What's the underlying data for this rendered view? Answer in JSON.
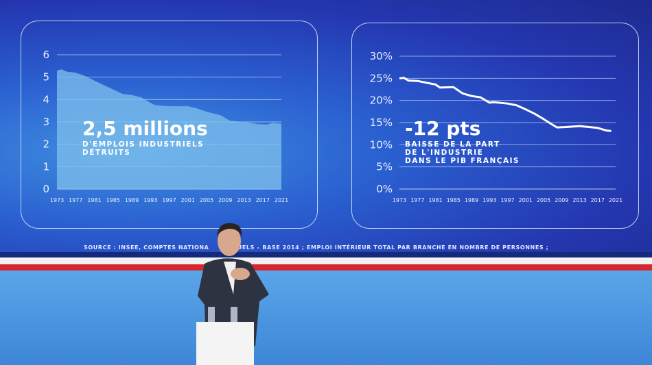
{
  "chart_data": [
    {
      "type": "area",
      "x": [
        1973,
        1974,
        1975,
        1977,
        1979,
        1981,
        1983,
        1985,
        1987,
        1989,
        1991,
        1993,
        1994,
        1997,
        2001,
        2003,
        2005,
        2007,
        2008,
        2010,
        2013,
        2016,
        2018,
        2019,
        2021
      ],
      "values": [
        5.3,
        5.35,
        5.25,
        5.2,
        5.05,
        4.85,
        4.65,
        4.45,
        4.25,
        4.2,
        4.1,
        3.85,
        3.75,
        3.7,
        3.7,
        3.6,
        3.45,
        3.35,
        3.3,
        3.05,
        3.0,
        2.9,
        2.88,
        2.95,
        2.92
      ],
      "ylim": [
        0,
        6
      ],
      "yticks": [
        "0",
        "1",
        "2",
        "3",
        "4",
        "5",
        "6"
      ],
      "xticks": [
        "1973",
        "1977",
        "1981",
        "1985",
        "1989",
        "1993",
        "1997",
        "2001",
        "2005",
        "2009",
        "2013",
        "2017",
        "2021"
      ],
      "grid": true,
      "annotation": {
        "headline": "2,5 millions",
        "sub1": "D'EMPLOIS INDUSTRIELS",
        "sub2": "DÉTRUITS"
      }
    },
    {
      "type": "line",
      "x": [
        1973,
        1974,
        1975,
        1977,
        1979,
        1981,
        1982,
        1985,
        1987,
        1989,
        1991,
        1993,
        1994,
        1997,
        1999,
        2001,
        2003,
        2005,
        2007,
        2008,
        2010,
        2013,
        2017,
        2019,
        2020
      ],
      "values": [
        25.0,
        25.1,
        24.5,
        24.4,
        24.0,
        23.6,
        22.9,
        23.0,
        21.6,
        21.0,
        20.7,
        19.5,
        19.6,
        19.3,
        18.9,
        18.0,
        17.0,
        15.8,
        14.5,
        13.9,
        14.0,
        14.2,
        13.8,
        13.2,
        13.1
      ],
      "ylim": [
        0,
        30
      ],
      "yticks": [
        "0%",
        "5%",
        "10%",
        "15%",
        "20%",
        "25%",
        "30%"
      ],
      "xticks": [
        "1973",
        "1977",
        "1981",
        "1985",
        "1989",
        "1993",
        "1997",
        "2001",
        "2005",
        "2009",
        "2013",
        "2017",
        "2021"
      ],
      "grid": true,
      "annotation": {
        "headline": "-12 pts",
        "sub1": "BAISSE DE LA PART",
        "sub2": "DE L'INDUSTRIE",
        "sub3": "DANS LE PIB FRANÇAIS"
      }
    }
  ],
  "source_left": "SOURCE : INSEE, COMPTES NATIONA",
  "source_right": "NUELS – BASE 2014 ; EMPLOI INTÉRIEUR TOTAL PAR BRANCHE EN NOMBRE DE PERSONNES ;",
  "colors": {
    "area": "#7fc0ec",
    "line": "#ffffff",
    "flag_red": "#d8262e"
  }
}
